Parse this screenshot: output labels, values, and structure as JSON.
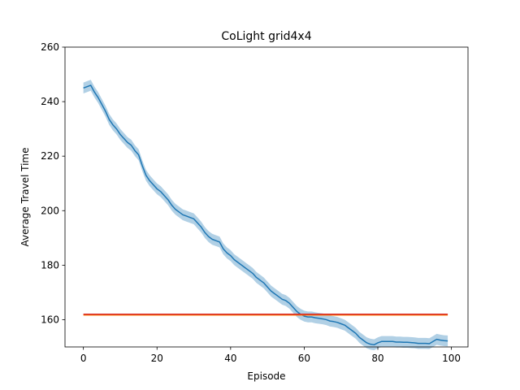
{
  "chart_data": {
    "type": "line",
    "title": "CoLight grid4x4",
    "xlabel": "Episode",
    "ylabel": "Average Travel Time",
    "xlim": [
      -5,
      104.5
    ],
    "ylim": [
      150,
      260
    ],
    "xticks": [
      0,
      20,
      40,
      60,
      80,
      100
    ],
    "yticks": [
      160,
      180,
      200,
      220,
      240,
      260
    ],
    "grid": false,
    "legend": "none",
    "series": [
      {
        "color": "#1f77b4",
        "band_color": "#1f77b4",
        "x": [
          0,
          1,
          2,
          3,
          4,
          5,
          6,
          7,
          8,
          9,
          10,
          11,
          12,
          13,
          14,
          15,
          16,
          17,
          18,
          19,
          20,
          21,
          22,
          23,
          24,
          25,
          26,
          27,
          28,
          29,
          30,
          31,
          32,
          33,
          34,
          35,
          36,
          37,
          38,
          39,
          40,
          41,
          42,
          43,
          44,
          45,
          46,
          47,
          48,
          49,
          50,
          51,
          52,
          53,
          54,
          55,
          56,
          57,
          58,
          59,
          60,
          61,
          62,
          63,
          64,
          65,
          66,
          67,
          68,
          69,
          70,
          71,
          72,
          73,
          74,
          75,
          76,
          77,
          78,
          79,
          80,
          81,
          82,
          83,
          84,
          85,
          86,
          87,
          88,
          89,
          90,
          91,
          92,
          93,
          94,
          95,
          96,
          97,
          98,
          99
        ],
        "y": [
          245.0,
          245.5,
          246.0,
          243.5,
          241.5,
          239.0,
          236.5,
          233.5,
          231.5,
          230.0,
          228.0,
          226.5,
          225.0,
          224.0,
          222.0,
          220.5,
          216.5,
          213.0,
          211.0,
          209.5,
          208.0,
          207.0,
          205.5,
          204.0,
          202.0,
          200.5,
          199.5,
          198.5,
          198.0,
          197.5,
          197.0,
          195.5,
          194.0,
          192.0,
          190.5,
          189.5,
          189.0,
          188.5,
          186.0,
          184.5,
          183.5,
          182.0,
          181.0,
          180.0,
          179.0,
          178.0,
          177.0,
          175.5,
          174.5,
          173.5,
          172.0,
          170.5,
          169.5,
          168.5,
          167.5,
          167.0,
          166.0,
          164.5,
          163.0,
          162.0,
          161.3,
          161.0,
          161.0,
          160.7,
          160.5,
          160.3,
          160.0,
          159.5,
          159.3,
          159.0,
          158.5,
          158.0,
          157.0,
          156.0,
          155.0,
          153.5,
          152.5,
          151.5,
          151.0,
          150.8,
          151.5,
          152.0,
          152.0,
          152.0,
          152.0,
          151.8,
          151.8,
          151.7,
          151.7,
          151.6,
          151.5,
          151.3,
          151.3,
          151.3,
          151.2,
          152.0,
          152.8,
          152.5,
          152.3,
          152.2
        ],
        "band": 2.0
      },
      {
        "color": "#ff7f0e",
        "x": [
          0,
          99
        ],
        "y": [
          161.7,
          161.7
        ]
      },
      {
        "color": "#d62728",
        "x": [
          0,
          99
        ],
        "y": [
          162.0,
          162.0
        ]
      }
    ]
  }
}
